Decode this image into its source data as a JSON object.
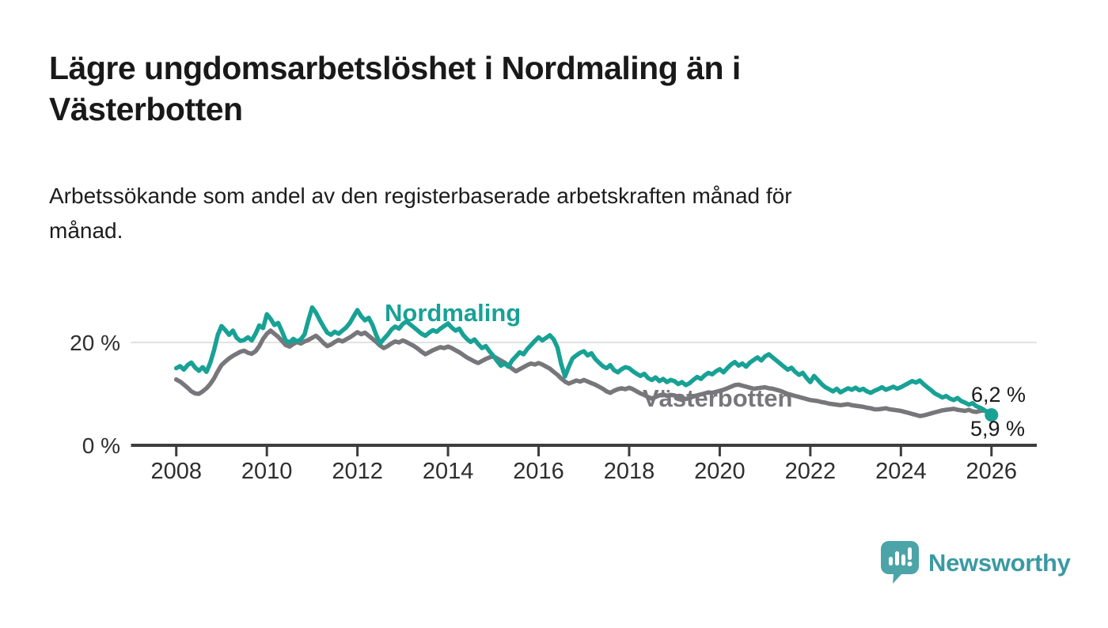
{
  "header": {
    "title_lines": [
      "Lägre ungdomsarbetslöshet i Nordmaling än i",
      "Västerbotten"
    ],
    "subtitle_lines": [
      "Arbetssökande som andel av den registerbaserade arbetskraften månad för",
      "månad."
    ]
  },
  "chart_data": {
    "type": "line",
    "title": "Lägre ungdomsarbetslöshet i Nordmaling än i Västerbotten",
    "subtitle": "Arbetssökande som andel av den registerbaserade arbetskraften månad för månad.",
    "unit": "%",
    "x_axis": {
      "domain": [
        2007,
        2027
      ],
      "tick_years": [
        2008,
        2010,
        2012,
        2014,
        2016,
        2018,
        2020,
        2022,
        2024,
        2026
      ]
    },
    "y_axis": {
      "max": 32,
      "ticks": [
        {
          "value": 0,
          "label": "0 %"
        },
        {
          "value": 20,
          "label": "20 %"
        }
      ]
    },
    "grid": "horizontal line at 20 % only",
    "legend_position": "inline labels on lines",
    "colors": {
      "nordmaling": "#18a195",
      "vasterbotten": "#77777b",
      "grid": "#e2e2e2",
      "axis": "#3d3d3d",
      "tick_text": "#2e2e2e"
    },
    "series": [
      {
        "name": "Västerbotten",
        "color": "#77777b",
        "end_value": 6.2,
        "end_label": "6,2 %",
        "monthly": {
          "2008": [
            12.8,
            12.4,
            11.8,
            11.2,
            10.5,
            10.1,
            10.0,
            10.5,
            11.1,
            11.9,
            13.0,
            14.4
          ],
          "2009": [
            15.6,
            16.3,
            16.9,
            17.4,
            17.8,
            18.2,
            18.4,
            18.0,
            17.8,
            18.3,
            19.3,
            20.7
          ],
          "2010": [
            21.7,
            22.3,
            21.7,
            21.1,
            20.3,
            19.5,
            19.2,
            19.7,
            20.1,
            19.8,
            20.2,
            20.5
          ],
          "2011": [
            20.9,
            21.3,
            20.7,
            19.9,
            19.3,
            19.6,
            20.1,
            20.5,
            20.2,
            20.6,
            21.0,
            21.5
          ],
          "2012": [
            22.0,
            21.6,
            21.9,
            21.3,
            20.7,
            20.1,
            19.4,
            18.9,
            19.3,
            19.8,
            20.2,
            20.0
          ],
          "2013": [
            20.4,
            20.1,
            19.7,
            19.3,
            18.8,
            18.2,
            17.7,
            18.1,
            18.5,
            18.8,
            19.1,
            18.9
          ],
          "2014": [
            19.2,
            18.9,
            18.5,
            18.1,
            17.6,
            17.1,
            16.7,
            16.3,
            16.0,
            16.4,
            16.8,
            17.1
          ],
          "2015": [
            17.3,
            16.9,
            16.5,
            16.1,
            15.5,
            14.9,
            14.4,
            14.8,
            15.2,
            15.6,
            15.9,
            15.7
          ],
          "2016": [
            16.0,
            15.7,
            15.3,
            14.9,
            14.3,
            13.7,
            13.0,
            12.4,
            12.0,
            12.3,
            12.6,
            12.4
          ],
          "2017": [
            12.7,
            12.4,
            12.1,
            11.8,
            11.4,
            11.0,
            10.5,
            10.2,
            10.6,
            10.9,
            11.1,
            10.9
          ],
          "2018": [
            11.2,
            10.9,
            10.5,
            10.1,
            9.8,
            9.4,
            9.1,
            9.4,
            9.7,
            9.9,
            9.6,
            9.8
          ],
          "2019": [
            9.7,
            9.4,
            9.2,
            9.0,
            9.2,
            9.5,
            9.7,
            9.9,
            10.1,
            10.3,
            10.2,
            10.4
          ],
          "2020": [
            10.6,
            10.8,
            11.1,
            11.4,
            11.7,
            11.8,
            11.6,
            11.4,
            11.2,
            11.0,
            11.1,
            11.2
          ],
          "2021": [
            11.3,
            11.1,
            11.0,
            10.8,
            10.6,
            10.3,
            10.0,
            9.8,
            9.6,
            9.4,
            9.2,
            9.0
          ],
          "2022": [
            8.8,
            8.7,
            8.6,
            8.4,
            8.3,
            8.1,
            8.0,
            7.9,
            7.8,
            7.9,
            8.0,
            7.8
          ],
          "2023": [
            7.7,
            7.6,
            7.5,
            7.3,
            7.2,
            7.0,
            7.0,
            7.1,
            7.2,
            7.0,
            6.9,
            6.8
          ],
          "2024": [
            6.7,
            6.5,
            6.3,
            6.1,
            5.9,
            5.7,
            5.8,
            6.0,
            6.2,
            6.4,
            6.6,
            6.8
          ],
          "2025": [
            6.9,
            7.0,
            7.1,
            6.9,
            6.8,
            6.7,
            6.9,
            6.6,
            6.5,
            6.7,
            6.8,
            6.5
          ],
          "2026": [
            6.2
          ]
        }
      },
      {
        "name": "Nordmaling",
        "color": "#18a195",
        "end_value": 5.9,
        "end_label": "5,9 %",
        "end_marker": true,
        "monthly": {
          "2008": [
            15.0,
            15.4,
            14.7,
            15.6,
            16.1,
            15.1,
            14.5,
            15.2,
            14.3,
            16.0,
            18.5,
            21.5
          ],
          "2009": [
            23.2,
            22.4,
            21.5,
            22.3,
            20.9,
            20.3,
            20.5,
            21.0,
            20.4,
            21.7,
            23.3,
            22.8
          ],
          "2010": [
            25.5,
            24.6,
            23.4,
            23.8,
            22.2,
            20.4,
            20.0,
            20.7,
            20.2,
            20.6,
            21.6,
            24.3
          ],
          "2011": [
            26.8,
            25.8,
            24.4,
            23.1,
            21.9,
            21.5,
            22.1,
            21.7,
            22.3,
            22.9,
            23.8,
            25.1
          ],
          "2012": [
            26.3,
            25.1,
            24.3,
            24.8,
            23.4,
            21.4,
            19.8,
            20.7,
            21.5,
            22.5,
            23.1,
            22.7
          ],
          "2013": [
            23.6,
            24.1,
            23.5,
            22.9,
            22.3,
            21.7,
            21.3,
            21.9,
            22.4,
            22.1,
            22.7,
            23.2
          ],
          "2014": [
            23.7,
            22.9,
            22.3,
            22.7,
            21.5,
            20.7,
            20.1,
            20.6,
            19.7,
            18.9,
            19.3,
            18.3
          ],
          "2015": [
            17.4,
            16.4,
            15.5,
            15.9,
            15.3,
            16.5,
            17.3,
            18.1,
            17.7,
            18.7,
            19.5,
            20.3
          ],
          "2016": [
            21.0,
            20.4,
            20.9,
            21.4,
            20.6,
            19.0,
            15.8,
            13.4,
            15.3,
            16.9,
            17.5,
            18.0
          ],
          "2017": [
            18.3,
            17.5,
            17.9,
            16.8,
            16.1,
            15.4,
            15.0,
            15.6,
            14.6,
            14.2,
            14.8,
            15.2
          ],
          "2018": [
            15.0,
            14.4,
            13.9,
            13.5,
            13.9,
            13.1,
            12.7,
            13.2,
            12.5,
            12.9,
            12.3,
            12.7
          ],
          "2019": [
            12.5,
            11.9,
            12.3,
            11.7,
            12.1,
            12.7,
            13.3,
            12.9,
            13.6,
            14.1,
            13.8,
            14.4
          ],
          "2020": [
            14.8,
            14.2,
            15.0,
            15.7,
            16.2,
            15.5,
            15.9,
            15.3,
            16.1,
            16.6,
            17.1,
            16.5
          ],
          "2021": [
            17.3,
            17.7,
            17.1,
            16.5,
            15.9,
            15.3,
            14.7,
            15.1,
            14.3,
            13.7,
            14.1,
            13.1
          ],
          "2022": [
            12.3,
            13.5,
            12.7,
            11.9,
            11.3,
            10.9,
            10.5,
            11.0,
            10.3,
            10.7,
            11.1,
            10.8
          ],
          "2023": [
            11.2,
            10.7,
            11.0,
            10.5,
            10.2,
            10.6,
            10.9,
            11.3,
            10.8,
            11.1,
            11.4,
            11.0
          ],
          "2024": [
            11.3,
            11.7,
            12.1,
            12.5,
            12.2,
            12.6,
            11.9,
            11.3,
            10.7,
            10.1,
            9.7,
            9.3
          ],
          "2025": [
            9.6,
            9.1,
            8.8,
            9.2,
            8.6,
            8.3,
            7.9,
            8.2,
            7.6,
            7.3,
            6.9,
            6.4
          ],
          "2026": [
            5.9
          ]
        }
      }
    ]
  },
  "footer": {
    "brand": "Newsworthy",
    "brand_text_color": "#3a9aa3",
    "logo_bubble_color": "#4ba4a8"
  }
}
